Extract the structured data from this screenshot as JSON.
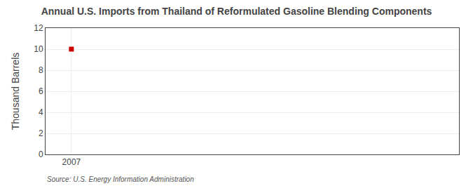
{
  "chart_data": {
    "type": "scatter",
    "title": "Annual U.S. Imports from Thailand of Reformulated Gasoline Blending Components",
    "ylabel": "Thousand Barrels",
    "annotations": [
      "Source: U.S. Energy Information Administration"
    ],
    "x": [
      2007
    ],
    "values": [
      10
    ],
    "color": "#cc0000",
    "marker": "square",
    "xlim": [
      2006.5,
      2014.5
    ],
    "xticks": [
      2007
    ],
    "ylim": [
      0,
      12
    ],
    "yticks": [
      0,
      2,
      4,
      6,
      8,
      10,
      12
    ],
    "grid": true
  }
}
